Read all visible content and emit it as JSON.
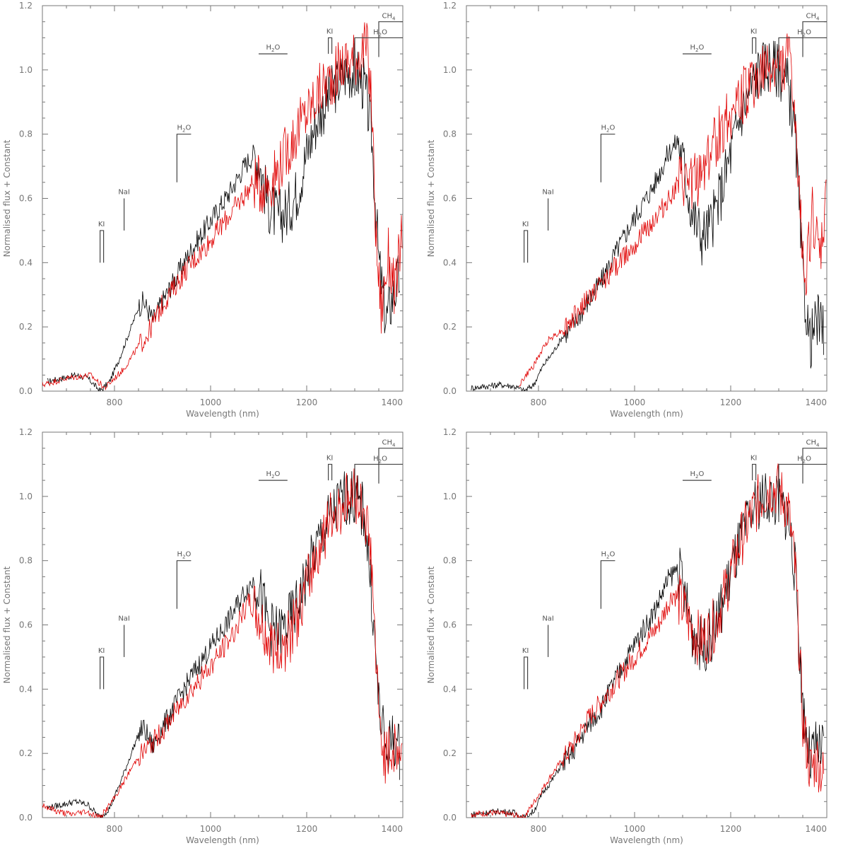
{
  "colors": {
    "observed": "#000000",
    "model": "#e00000",
    "axis": "#777777"
  },
  "axis_text": {
    "xlabel": "Wavelength (nm)",
    "ylabel": "Normalised flux + Constant"
  },
  "chart_data": [
    {
      "type": "line",
      "panel": "top-left",
      "xlim": [
        650,
        1400
      ],
      "ylim": [
        0,
        1.2
      ],
      "xticks": [
        800,
        1000,
        1200,
        1400
      ],
      "yticks": [
        0.0,
        0.2,
        0.4,
        0.6,
        0.8,
        1.0,
        1.2
      ],
      "xlabel": "Wavelength (nm)",
      "ylabel": "Normalised flux + Constant",
      "grid": false,
      "series": [
        {
          "color": "#000000",
          "x": [
            660,
            690,
            720,
            745,
            770,
            790,
            810,
            830,
            850,
            860,
            880,
            900,
            930,
            960,
            1000,
            1040,
            1070,
            1090,
            1100,
            1120,
            1140,
            1160,
            1180,
            1200,
            1220,
            1240,
            1260,
            1280,
            1300,
            1320,
            1335,
            1350,
            1365,
            1380,
            1395
          ],
          "y": [
            0.03,
            0.04,
            0.05,
            0.04,
            0.0,
            0.03,
            0.1,
            0.18,
            0.26,
            0.28,
            0.22,
            0.28,
            0.36,
            0.44,
            0.53,
            0.62,
            0.7,
            0.74,
            0.72,
            0.58,
            0.54,
            0.56,
            0.62,
            0.74,
            0.84,
            0.9,
            0.95,
            0.99,
            1.0,
            0.95,
            0.8,
            0.4,
            0.22,
            0.3,
            0.36
          ]
        },
        {
          "color": "#e00000",
          "x": [
            650,
            700,
            750,
            780,
            820,
            850,
            870,
            900,
            950,
            1000,
            1050,
            1090,
            1110,
            1130,
            1150,
            1170,
            1190,
            1210,
            1230,
            1250,
            1270,
            1290,
            1310,
            1325,
            1335,
            1345,
            1355,
            1370,
            1385,
            1400
          ],
          "y": [
            0.02,
            0.04,
            0.05,
            0.01,
            0.07,
            0.14,
            0.18,
            0.27,
            0.38,
            0.47,
            0.57,
            0.65,
            0.64,
            0.66,
            0.72,
            0.78,
            0.84,
            0.89,
            0.94,
            0.97,
            1.01,
            1.03,
            1.05,
            1.07,
            0.9,
            0.45,
            0.25,
            0.42,
            0.3,
            0.55
          ]
        }
      ],
      "annotations": [
        {
          "text": "KI",
          "x": 770,
          "y": 0.5
        },
        {
          "text": "NaI",
          "x": 820,
          "y": 0.6
        },
        {
          "text": "H2O",
          "x": 930,
          "y": 0.8
        },
        {
          "text": "H2O",
          "x": 1110,
          "y": 1.05
        },
        {
          "text": "KI",
          "x": 1245,
          "y": 1.1
        },
        {
          "text": "H2O",
          "x": 1300,
          "y": 1.1
        },
        {
          "text": "CH4",
          "x": 1350,
          "y": 1.15
        }
      ]
    },
    {
      "type": "line",
      "panel": "top-right",
      "xlim": [
        650,
        1400
      ],
      "ylim": [
        0,
        1.2
      ],
      "xticks": [
        800,
        1000,
        1200,
        1400
      ],
      "yticks": [
        0.0,
        0.2,
        0.4,
        0.6,
        0.8,
        1.0,
        1.2
      ],
      "xlabel": "Wavelength (nm)",
      "ylabel": "Normalised flux + Constant",
      "grid": false,
      "series": [
        {
          "color": "#000000",
          "x": [
            660,
            690,
            720,
            750,
            770,
            790,
            810,
            830,
            850,
            870,
            900,
            930,
            960,
            1000,
            1040,
            1070,
            1090,
            1100,
            1120,
            1140,
            1160,
            1180,
            1200,
            1220,
            1240,
            1260,
            1280,
            1300,
            1320,
            1335,
            1350,
            1365,
            1380,
            1395
          ],
          "y": [
            0.01,
            0.015,
            0.02,
            0.015,
            0.0,
            0.02,
            0.08,
            0.12,
            0.17,
            0.2,
            0.27,
            0.34,
            0.43,
            0.54,
            0.64,
            0.74,
            0.78,
            0.72,
            0.55,
            0.48,
            0.52,
            0.62,
            0.74,
            0.86,
            0.94,
            1.0,
            1.02,
            1.0,
            0.95,
            0.78,
            0.35,
            0.15,
            0.22,
            0.18
          ]
        },
        {
          "color": "#e00000",
          "x": [
            760,
            790,
            820,
            850,
            870,
            900,
            950,
            1000,
            1050,
            1090,
            1110,
            1130,
            1150,
            1170,
            1190,
            1210,
            1230,
            1250,
            1270,
            1290,
            1310,
            1325,
            1340,
            1355,
            1370,
            1385,
            1400
          ],
          "y": [
            0.02,
            0.08,
            0.16,
            0.19,
            0.22,
            0.28,
            0.37,
            0.46,
            0.55,
            0.64,
            0.64,
            0.66,
            0.72,
            0.78,
            0.84,
            0.89,
            0.93,
            0.96,
            0.99,
            1.01,
            1.02,
            1.04,
            0.65,
            0.35,
            0.55,
            0.4,
            0.6
          ]
        }
      ],
      "annotations": [
        {
          "text": "KI",
          "x": 770,
          "y": 0.5
        },
        {
          "text": "NaI",
          "x": 820,
          "y": 0.6
        },
        {
          "text": "H2O",
          "x": 930,
          "y": 0.8
        },
        {
          "text": "H2O",
          "x": 1110,
          "y": 1.05
        },
        {
          "text": "KI",
          "x": 1245,
          "y": 1.1
        },
        {
          "text": "H2O",
          "x": 1300,
          "y": 1.1
        },
        {
          "text": "CH4",
          "x": 1350,
          "y": 1.15
        }
      ]
    },
    {
      "type": "line",
      "panel": "bottom-left",
      "xlim": [
        650,
        1400
      ],
      "ylim": [
        0,
        1.2
      ],
      "xticks": [
        800,
        1000,
        1200,
        1400
      ],
      "yticks": [
        0.0,
        0.2,
        0.4,
        0.6,
        0.8,
        1.0,
        1.2
      ],
      "xlabel": "Wavelength (nm)",
      "ylabel": "Normalised flux + Constant",
      "grid": false,
      "series": [
        {
          "color": "#000000",
          "x": [
            660,
            690,
            720,
            745,
            770,
            790,
            810,
            830,
            850,
            860,
            880,
            900,
            930,
            960,
            1000,
            1040,
            1070,
            1090,
            1100,
            1120,
            1140,
            1160,
            1180,
            1200,
            1220,
            1240,
            1260,
            1280,
            1300,
            1320,
            1335,
            1350,
            1365,
            1380,
            1395
          ],
          "y": [
            0.03,
            0.04,
            0.05,
            0.04,
            0.0,
            0.03,
            0.1,
            0.18,
            0.26,
            0.28,
            0.22,
            0.28,
            0.36,
            0.44,
            0.53,
            0.62,
            0.7,
            0.74,
            0.72,
            0.6,
            0.57,
            0.6,
            0.66,
            0.75,
            0.84,
            0.91,
            0.96,
            1.0,
            0.99,
            0.95,
            0.7,
            0.35,
            0.2,
            0.25,
            0.2
          ]
        },
        {
          "color": "#e00000",
          "x": [
            650,
            680,
            710,
            740,
            770,
            800,
            830,
            850,
            870,
            900,
            950,
            1000,
            1050,
            1080,
            1100,
            1120,
            1140,
            1160,
            1180,
            1200,
            1220,
            1240,
            1260,
            1280,
            1300,
            1320,
            1335,
            1350,
            1365,
            1380,
            1400
          ],
          "y": [
            0.04,
            0.02,
            0.01,
            0.02,
            0.0,
            0.06,
            0.14,
            0.19,
            0.22,
            0.27,
            0.38,
            0.47,
            0.58,
            0.67,
            0.62,
            0.55,
            0.52,
            0.55,
            0.62,
            0.72,
            0.82,
            0.9,
            0.95,
            0.99,
            1.0,
            0.97,
            0.8,
            0.3,
            0.18,
            0.22,
            0.2
          ]
        }
      ],
      "annotations": [
        {
          "text": "KI",
          "x": 770,
          "y": 0.5
        },
        {
          "text": "NaI",
          "x": 820,
          "y": 0.6
        },
        {
          "text": "H2O",
          "x": 930,
          "y": 0.8
        },
        {
          "text": "H2O",
          "x": 1110,
          "y": 1.05
        },
        {
          "text": "KI",
          "x": 1245,
          "y": 1.1
        },
        {
          "text": "H2O",
          "x": 1300,
          "y": 1.1
        },
        {
          "text": "CH4",
          "x": 1350,
          "y": 1.15
        }
      ]
    },
    {
      "type": "line",
      "panel": "bottom-right",
      "xlim": [
        650,
        1400
      ],
      "ylim": [
        0,
        1.2
      ],
      "xticks": [
        800,
        1000,
        1200,
        1400
      ],
      "yticks": [
        0.0,
        0.2,
        0.4,
        0.6,
        0.8,
        1.0,
        1.2
      ],
      "xlabel": "Wavelength (nm)",
      "ylabel": "Normalised flux + Constant",
      "grid": false,
      "series": [
        {
          "color": "#000000",
          "x": [
            660,
            690,
            720,
            750,
            770,
            790,
            810,
            830,
            850,
            870,
            900,
            930,
            960,
            1000,
            1040,
            1070,
            1090,
            1100,
            1120,
            1140,
            1160,
            1180,
            1200,
            1220,
            1240,
            1260,
            1280,
            1300,
            1320,
            1335,
            1350,
            1365,
            1380,
            1395
          ],
          "y": [
            0.01,
            0.015,
            0.02,
            0.015,
            0.0,
            0.02,
            0.08,
            0.12,
            0.17,
            0.2,
            0.28,
            0.34,
            0.43,
            0.54,
            0.64,
            0.74,
            0.78,
            0.72,
            0.58,
            0.53,
            0.57,
            0.65,
            0.76,
            0.86,
            0.93,
            0.99,
            1.0,
            0.98,
            0.94,
            0.75,
            0.35,
            0.18,
            0.22,
            0.2
          ]
        },
        {
          "color": "#e00000",
          "x": [
            660,
            700,
            740,
            770,
            800,
            830,
            850,
            870,
            900,
            950,
            1000,
            1050,
            1080,
            1100,
            1120,
            1140,
            1160,
            1180,
            1200,
            1220,
            1240,
            1260,
            1280,
            1300,
            1320,
            1335,
            1350,
            1365,
            1380,
            1395
          ],
          "y": [
            0.01,
            0.015,
            0.01,
            0.0,
            0.07,
            0.14,
            0.18,
            0.22,
            0.3,
            0.4,
            0.5,
            0.6,
            0.7,
            0.66,
            0.58,
            0.55,
            0.58,
            0.66,
            0.76,
            0.86,
            0.93,
            0.99,
            1.03,
            1.02,
            0.96,
            0.76,
            0.3,
            0.15,
            0.18,
            0.12
          ]
        }
      ],
      "annotations": [
        {
          "text": "KI",
          "x": 770,
          "y": 0.5
        },
        {
          "text": "NaI",
          "x": 820,
          "y": 0.6
        },
        {
          "text": "H2O",
          "x": 930,
          "y": 0.8
        },
        {
          "text": "H2O",
          "x": 1110,
          "y": 1.05
        },
        {
          "text": "KI",
          "x": 1245,
          "y": 1.1
        },
        {
          "text": "H2O",
          "x": 1300,
          "y": 1.1
        },
        {
          "text": "CH4",
          "x": 1350,
          "y": 1.15
        }
      ]
    }
  ]
}
